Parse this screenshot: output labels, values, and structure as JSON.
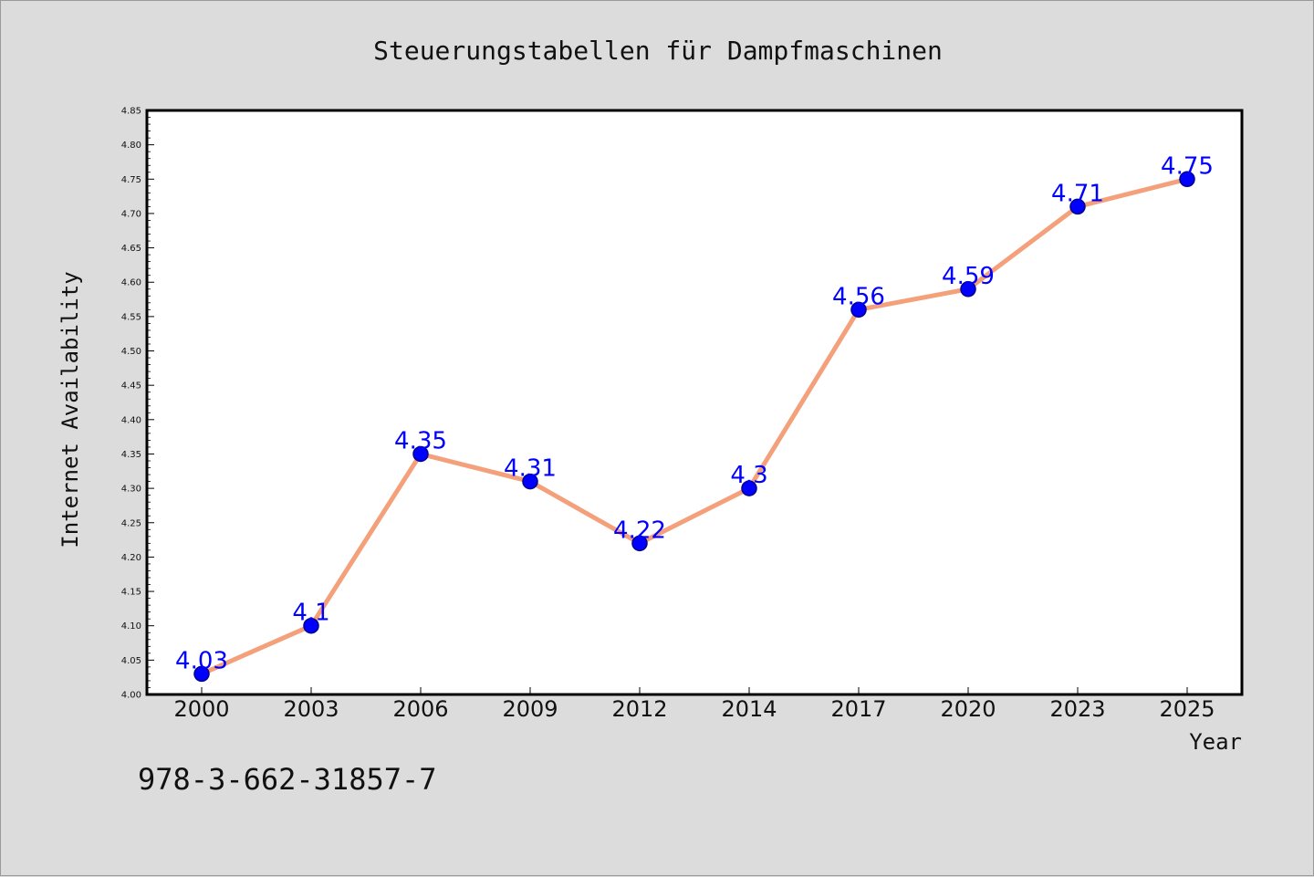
{
  "chart_data": {
    "type": "line",
    "title": "Steuerungstabellen für Dampfmaschinen",
    "xlabel": "Year",
    "ylabel": "Internet Availability",
    "categories": [
      "2000",
      "2003",
      "2006",
      "2009",
      "2012",
      "2014",
      "2017",
      "2020",
      "2023",
      "2025"
    ],
    "series": [
      {
        "values": [
          4.03,
          4.1,
          4.35,
          4.31,
          4.22,
          4.3,
          4.56,
          4.59,
          4.71,
          4.75
        ],
        "data_labels": [
          "4.03",
          "4.1",
          "4.35",
          "4.31",
          "4.22",
          "4.3",
          "4.56",
          "4.59",
          "4.71",
          "4.75"
        ]
      }
    ],
    "ylim": [
      4.0,
      4.85
    ],
    "yticks": [
      "4.00",
      "4.05",
      "4.10",
      "4.15",
      "4.20",
      "4.25",
      "4.30",
      "4.35",
      "4.40",
      "4.45",
      "4.50",
      "4.55",
      "4.60",
      "4.65",
      "4.70",
      "4.75",
      "4.80",
      "4.85"
    ],
    "grid": false,
    "colors": {
      "line": "#f4a07a",
      "marker": "#0000ff",
      "marker_edge": "#00008b",
      "data_label": "#0000ff",
      "plot_bg": "#ffffff",
      "page_bg": "#dcdcdc"
    }
  },
  "footer": {
    "isbn": "978-3-662-31857-7"
  }
}
